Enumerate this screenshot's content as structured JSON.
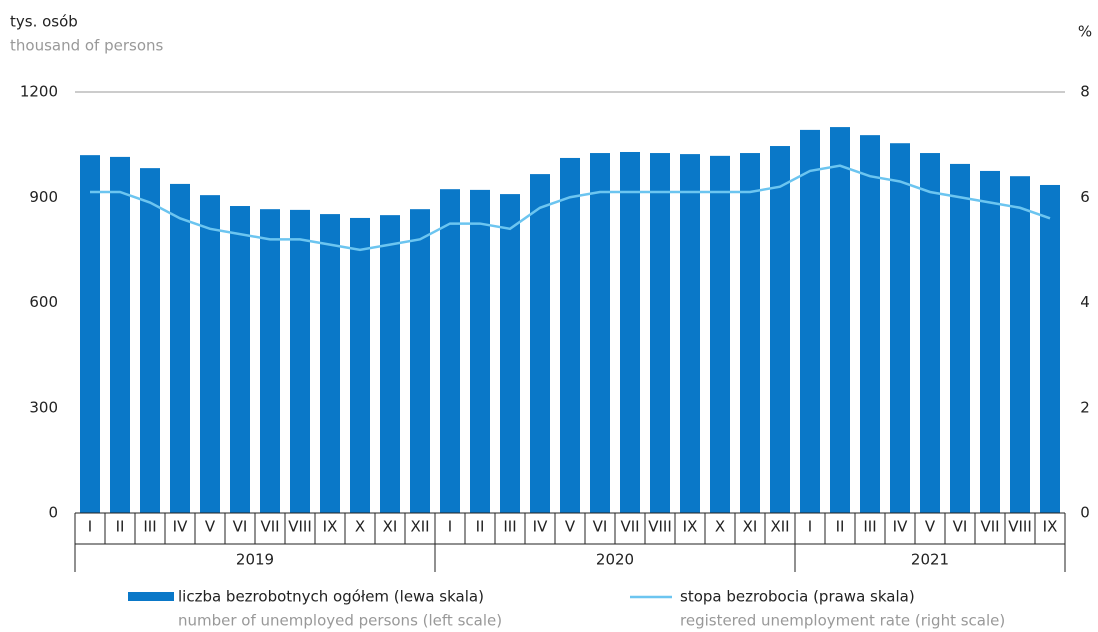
{
  "chart_data": {
    "type": "bar-line",
    "y_label": "tys. osób",
    "y_label_en": "thousand of persons",
    "y2_label": "%",
    "categories": [
      "I",
      "II",
      "III",
      "IV",
      "V",
      "VI",
      "VII",
      "VIII",
      "IX",
      "X",
      "XI",
      "XII",
      "I",
      "II",
      "III",
      "IV",
      "V",
      "VI",
      "VII",
      "VIII",
      "IX",
      "X",
      "XI",
      "XII",
      "I",
      "II",
      "III",
      "IV",
      "V",
      "VI",
      "VII",
      "VIII",
      "IX"
    ],
    "years": [
      "2019",
      "2020",
      "2021"
    ],
    "series": [
      {
        "name": "liczba bezrobotnych ogółem (lewa skala)",
        "name_en": "number of unemployed persons (left scale)",
        "type": "bar",
        "color": "#0a78c8",
        "values": [
          1020,
          1015,
          983,
          938,
          906,
          875,
          866,
          864,
          852,
          841,
          849,
          866,
          923,
          921,
          909,
          966,
          1012,
          1026,
          1029,
          1026,
          1023,
          1018,
          1026,
          1046,
          1092,
          1100,
          1077,
          1054,
          1026,
          995,
          975,
          960,
          935
        ]
      },
      {
        "name": "stopa bezrobocia (prawa skala)",
        "name_en": "registered unemployment rate (right scale)",
        "type": "line",
        "axis": "y2",
        "color": "#6cc5f0",
        "values": [
          6.1,
          6.1,
          5.9,
          5.6,
          5.4,
          5.3,
          5.2,
          5.2,
          5.1,
          5.0,
          5.1,
          5.2,
          5.5,
          5.5,
          5.4,
          5.8,
          6.0,
          6.1,
          6.1,
          6.1,
          6.1,
          6.1,
          6.1,
          6.2,
          6.5,
          6.6,
          6.4,
          6.3,
          6.1,
          6.0,
          5.9,
          5.8,
          5.6
        ]
      }
    ],
    "ylim": [
      0,
      1200
    ],
    "yticks": [
      0,
      300,
      600,
      900,
      1200
    ],
    "y2lim": [
      0,
      8
    ],
    "y2ticks": [
      0,
      2,
      4,
      6,
      8
    ]
  }
}
